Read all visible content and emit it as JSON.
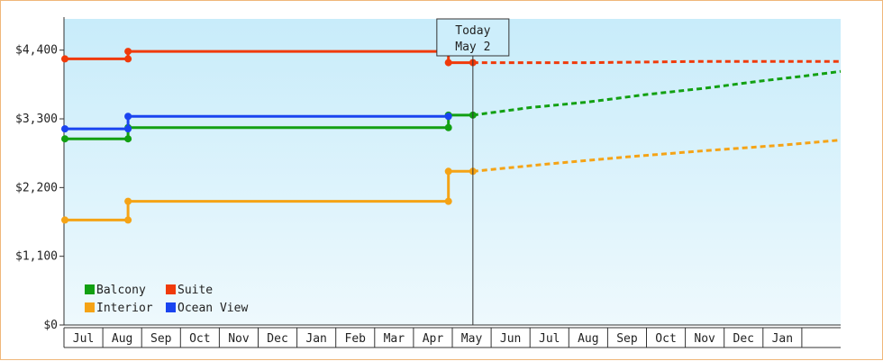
{
  "chart_data": {
    "type": "line",
    "title": "",
    "xlabel": "",
    "ylabel": "",
    "ylim": [
      0,
      4900
    ],
    "y_ticks": [
      {
        "value": 0,
        "label": "$0"
      },
      {
        "value": 1100,
        "label": "$1,100"
      },
      {
        "value": 2200,
        "label": "$2,200"
      },
      {
        "value": 3300,
        "label": "$3,300"
      },
      {
        "value": 4400,
        "label": "$4,400"
      }
    ],
    "month_labels": [
      "Jul",
      "Aug",
      "Sep",
      "Oct",
      "Nov",
      "Dec",
      "Jan",
      "Feb",
      "Mar",
      "Apr",
      "May",
      "Jun",
      "Jul",
      "Aug",
      "Sep",
      "Oct",
      "Nov",
      "Dec",
      "Jan"
    ],
    "x_start_month_index": -0.5,
    "x_end_month_index": 19.5,
    "today": {
      "line1": "Today",
      "line2": "May 2",
      "month_index": 10.03
    },
    "grid": false,
    "legend_position": "bottom-left",
    "series": [
      {
        "name": "Balcony",
        "color": "#12a012",
        "history": [
          [
            -0.5,
            2980
          ],
          [
            1.15,
            2980
          ],
          [
            1.15,
            3160
          ],
          [
            9.4,
            3160
          ],
          [
            9.4,
            3360
          ],
          [
            10.03,
            3360
          ]
        ],
        "forecast": [
          [
            10.03,
            3360
          ],
          [
            11.5,
            3480
          ],
          [
            13.0,
            3570
          ],
          [
            14.5,
            3690
          ],
          [
            16.0,
            3790
          ],
          [
            17.5,
            3910
          ],
          [
            18.5,
            3980
          ],
          [
            19.5,
            4060
          ]
        ]
      },
      {
        "name": "Suite",
        "color": "#f03a0a",
        "history": [
          [
            -0.5,
            4260
          ],
          [
            1.15,
            4260
          ],
          [
            1.15,
            4380
          ],
          [
            9.4,
            4380
          ],
          [
            9.4,
            4200
          ],
          [
            10.03,
            4200
          ]
        ],
        "forecast": [
          [
            10.03,
            4200
          ],
          [
            13.0,
            4200
          ],
          [
            16.0,
            4220
          ],
          [
            19.5,
            4220
          ]
        ]
      },
      {
        "name": "Interior",
        "color": "#f5a315",
        "history": [
          [
            -0.5,
            1680
          ],
          [
            1.15,
            1680
          ],
          [
            1.15,
            1980
          ],
          [
            9.4,
            1980
          ],
          [
            9.4,
            2460
          ],
          [
            10.03,
            2460
          ]
        ],
        "forecast": [
          [
            10.03,
            2460
          ],
          [
            12.0,
            2580
          ],
          [
            14.0,
            2690
          ],
          [
            16.0,
            2790
          ],
          [
            18.0,
            2880
          ],
          [
            19.5,
            2960
          ]
        ]
      },
      {
        "name": "Ocean View",
        "color": "#1a44f0",
        "history": [
          [
            -0.5,
            3140
          ],
          [
            1.15,
            3140
          ],
          [
            1.15,
            3340
          ],
          [
            9.4,
            3340
          ]
        ]
      }
    ]
  }
}
